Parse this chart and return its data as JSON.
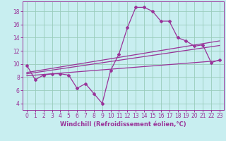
{
  "xlabel": "Windchill (Refroidissement éolien,°C)",
  "bg_color": "#c8eef0",
  "line_color": "#993399",
  "grid_color": "#99ccbb",
  "xlim": [
    -0.5,
    23.5
  ],
  "ylim": [
    3.0,
    19.5
  ],
  "xticks": [
    0,
    1,
    2,
    3,
    4,
    5,
    6,
    7,
    8,
    9,
    10,
    11,
    12,
    13,
    14,
    15,
    16,
    17,
    18,
    19,
    20,
    21,
    22,
    23
  ],
  "yticks": [
    4,
    6,
    8,
    10,
    12,
    14,
    16,
    18
  ],
  "line1_x": [
    0,
    1,
    2,
    3,
    4,
    5,
    6,
    7,
    8,
    9,
    10,
    11,
    12,
    13,
    14,
    15,
    16,
    17,
    18,
    19,
    20,
    21,
    22,
    23
  ],
  "line1_y": [
    9.8,
    7.6,
    8.3,
    8.5,
    8.5,
    8.3,
    6.3,
    7.0,
    5.5,
    4.0,
    9.0,
    11.5,
    15.5,
    18.6,
    18.6,
    18.0,
    16.5,
    16.5,
    14.0,
    13.5,
    12.7,
    12.9,
    10.2,
    10.6
  ],
  "line2_x": [
    0,
    23
  ],
  "line2_y": [
    8.2,
    10.5
  ],
  "line3_x": [
    0,
    23
  ],
  "line3_y": [
    8.5,
    12.8
  ],
  "line4_x": [
    0,
    23
  ],
  "line4_y": [
    8.7,
    13.5
  ],
  "xlabel_fontsize": 6,
  "tick_fontsize": 5.5
}
